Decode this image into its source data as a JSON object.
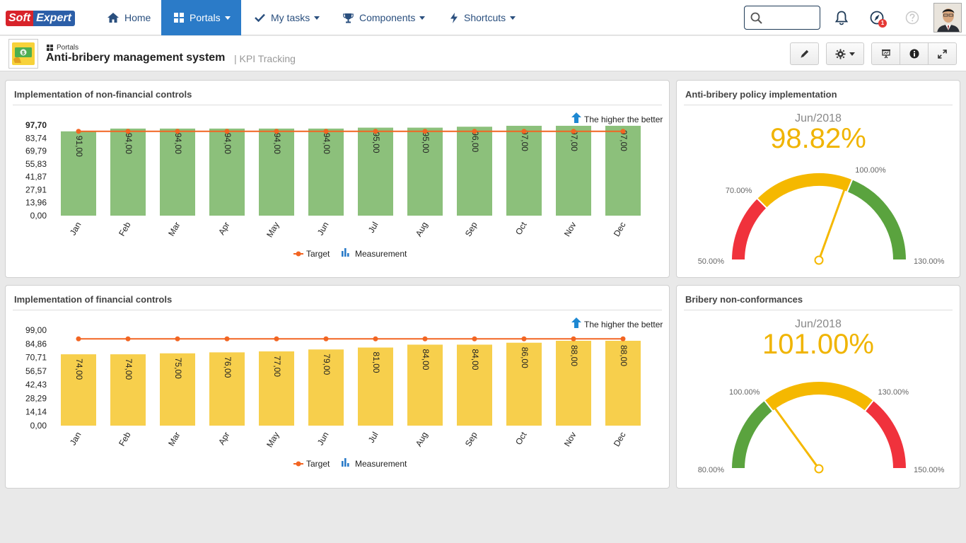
{
  "nav": {
    "logo_soft": "Soft",
    "logo_expert": "Expert",
    "home": "Home",
    "portals": "Portals",
    "my_tasks": "My tasks",
    "components": "Components",
    "shortcuts": "Shortcuts",
    "search_placeholder": "",
    "notification_count": "1"
  },
  "header": {
    "breadcrumb": "Portals",
    "title": "Anti-bribery management system",
    "subtitle": "| KPI Tracking"
  },
  "colors": {
    "accent": "#2b7bc8",
    "target_line": "#f26522",
    "green_bar": "#8cc07b",
    "yellow_bar": "#f7cf4c",
    "gauge_red": "#f0323c",
    "gauge_yellow": "#f5b800",
    "gauge_green": "#5aa33e"
  },
  "chart_data": [
    {
      "type": "bar",
      "title": "Implementation of non-financial controls",
      "note": "The higher the better",
      "categories": [
        "Jan",
        "Feb",
        "Mar",
        "Apr",
        "May",
        "Jun",
        "Jul",
        "Aug",
        "Sep",
        "Oct",
        "Nov",
        "Dec"
      ],
      "series": [
        {
          "name": "Measurement",
          "type": "bar",
          "values": [
            91,
            94,
            94,
            94,
            94,
            94,
            95,
            95,
            96,
            97,
            97,
            97
          ],
          "labels": [
            "91,00",
            "94,00",
            "94,00",
            "94,00",
            "94,00",
            "94,00",
            "95,00",
            "95,00",
            "96,00",
            "97,00",
            "97,00",
            "97,00"
          ]
        },
        {
          "name": "Target",
          "type": "line",
          "values": [
            91,
            91,
            91,
            91,
            91,
            91,
            91,
            91,
            91,
            91,
            91,
            91
          ]
        }
      ],
      "ylim": [
        0,
        97.7
      ],
      "yticks": [
        "97,70",
        "83,74",
        "69,79",
        "55,83",
        "41,87",
        "27,91",
        "13,96",
        "0,00"
      ],
      "legend": [
        "Target",
        "Measurement"
      ]
    },
    {
      "type": "bar",
      "title": "Implementation of financial controls",
      "note": "The higher the better",
      "categories": [
        "Jan",
        "Feb",
        "Mar",
        "Apr",
        "May",
        "Jun",
        "Jul",
        "Aug",
        "Sep",
        "Oct",
        "Nov",
        "Dec"
      ],
      "series": [
        {
          "name": "Measurement",
          "type": "bar",
          "values": [
            74,
            74,
            75,
            76,
            77,
            79,
            81,
            84,
            84,
            86,
            88,
            88
          ],
          "labels": [
            "74,00",
            "74,00",
            "75,00",
            "76,00",
            "77,00",
            "79,00",
            "81,00",
            "84,00",
            "84,00",
            "86,00",
            "88,00",
            "88,00"
          ]
        },
        {
          "name": "Target",
          "type": "line",
          "values": [
            90,
            90,
            90,
            90,
            90,
            90,
            90,
            90,
            90,
            90,
            90,
            90
          ]
        }
      ],
      "ylim": [
        0,
        99
      ],
      "yticks": [
        "99,00",
        "84,86",
        "70,71",
        "56,57",
        "42,43",
        "28,29",
        "14,14",
        "0,00"
      ],
      "legend": [
        "Target",
        "Measurement"
      ]
    },
    {
      "type": "gauge",
      "title": "Anti-bribery policy implementation",
      "period": "Jun/2018",
      "value_label": "98.82%",
      "value": 98.82,
      "min": 50,
      "max": 130,
      "bands": [
        {
          "from": 50,
          "to": 70,
          "color": "red"
        },
        {
          "from": 70,
          "to": 100,
          "color": "yellow"
        },
        {
          "from": 100,
          "to": 130,
          "color": "green"
        }
      ],
      "band_labels": [
        "50.00%",
        "70.00%",
        "100.00%",
        "130.00%"
      ]
    },
    {
      "type": "gauge",
      "title": "Bribery non-conformances",
      "period": "Jun/2018",
      "value_label": "101.00%",
      "value": 101,
      "min": 80,
      "max": 150,
      "bands": [
        {
          "from": 80,
          "to": 100,
          "color": "green"
        },
        {
          "from": 100,
          "to": 130,
          "color": "yellow"
        },
        {
          "from": 130,
          "to": 150,
          "color": "red"
        }
      ],
      "band_labels": [
        "80.00%",
        "100.00%",
        "130.00%",
        "150.00%"
      ]
    }
  ]
}
